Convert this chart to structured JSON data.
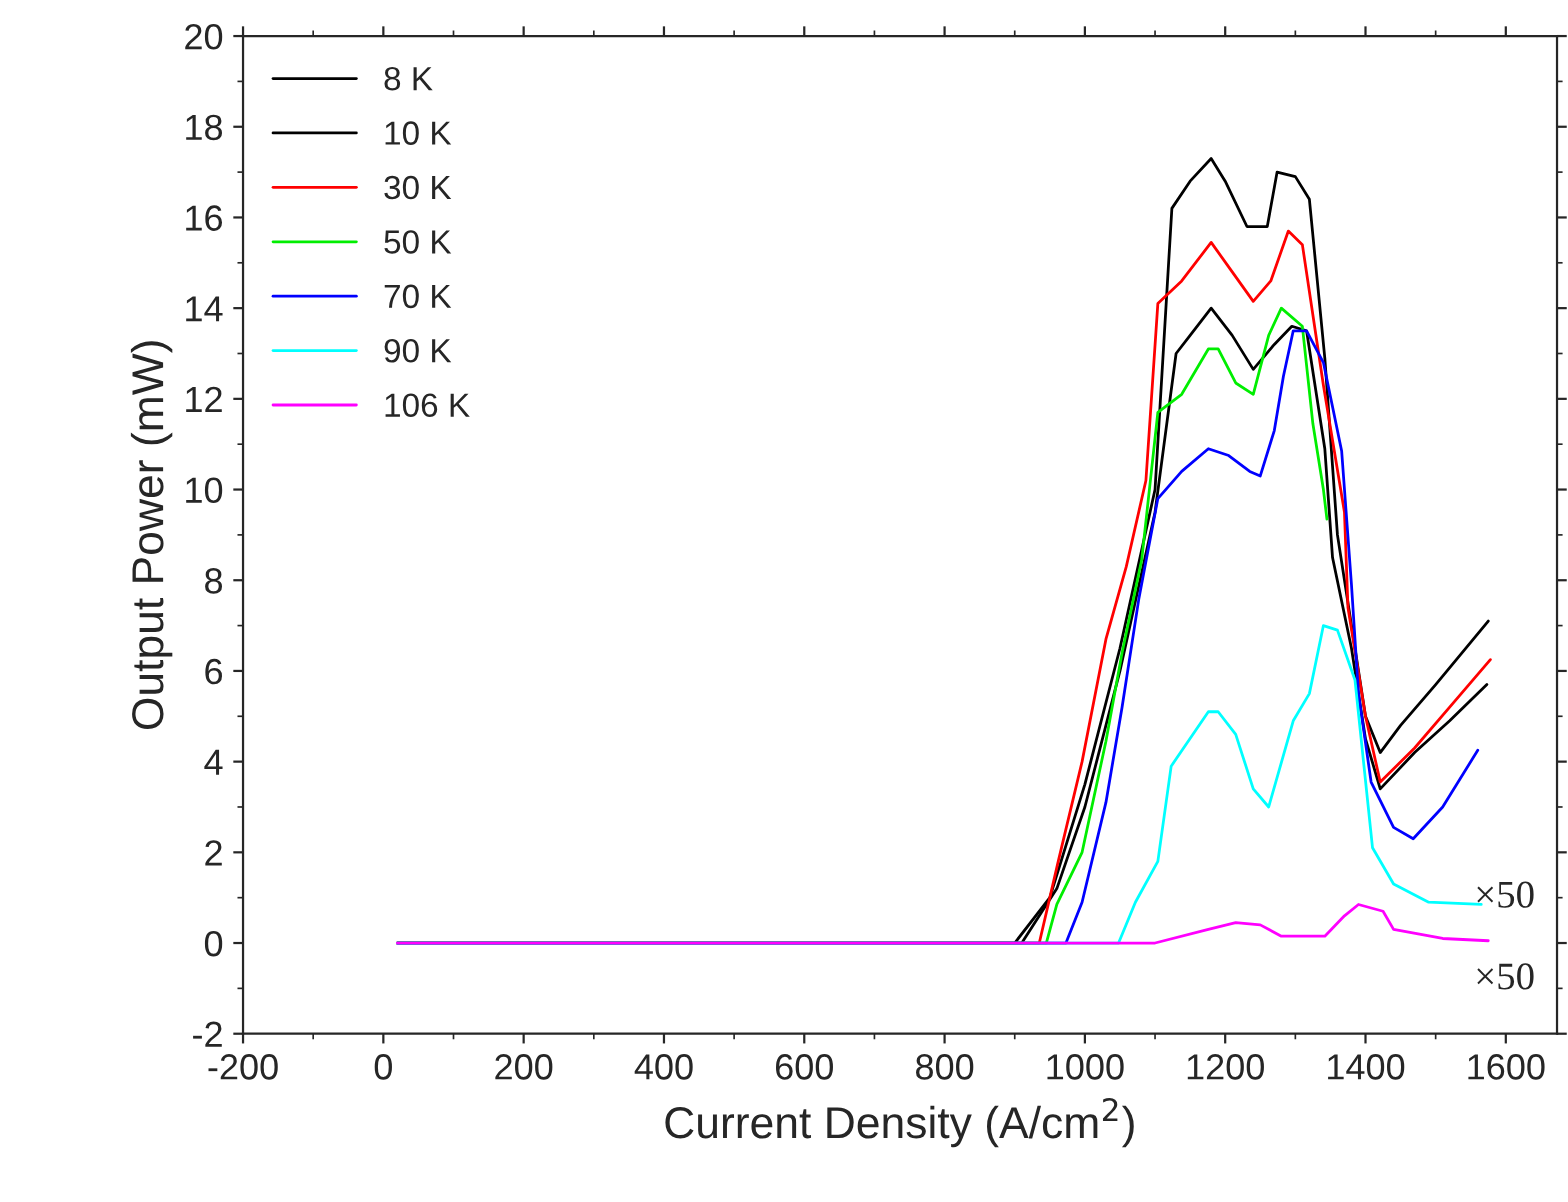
{
  "chart_data": {
    "type": "line",
    "xlabel": "Current Density (A/cm$^{2}$)",
    "ylabel": "Output Power (mW)",
    "xlim": [
      -200,
      1673
    ],
    "ylim": [
      -2,
      20
    ],
    "xticks": [
      -200,
      0,
      200,
      400,
      600,
      800,
      1000,
      1200,
      1400,
      1600
    ],
    "yticks": [
      -2,
      0,
      2,
      4,
      6,
      8,
      10,
      12,
      14,
      16,
      18,
      20
    ],
    "grid": false,
    "legend": "top left",
    "marker": "none",
    "line_style": "solid",
    "annotations": [
      "×50",
      "×50"
    ],
    "series": [
      {
        "name": "8 K",
        "color": "#000000",
        "x": [
          20,
          900,
          950,
          1000,
          1050,
          1100,
          1124,
          1150,
          1180,
          1200,
          1231,
          1260,
          1274,
          1300,
          1320,
          1342,
          1360,
          1380,
          1400,
          1421,
          1450,
          1500,
          1575
        ],
        "values": [
          0,
          0,
          1.0,
          3.5,
          6.5,
          10.0,
          16.2,
          16.8,
          17.3,
          16.8,
          15.8,
          15.8,
          17.0,
          16.9,
          16.4,
          12.9,
          9.0,
          7.0,
          5.0,
          4.2,
          4.8,
          5.7,
          7.1
        ]
      },
      {
        "name": "10 K",
        "color": "#000000",
        "x": [
          20,
          910,
          960,
          1000,
          1050,
          1100,
          1130,
          1150,
          1180,
          1210,
          1240,
          1270,
          1295,
          1316,
          1342,
          1353,
          1380,
          1400,
          1421,
          1470,
          1520,
          1573
        ],
        "values": [
          0,
          0,
          1.2,
          3.0,
          6.0,
          9.5,
          13.0,
          13.4,
          14.0,
          13.4,
          12.65,
          13.2,
          13.6,
          13.5,
          10.9,
          8.5,
          6.5,
          4.5,
          3.4,
          4.2,
          4.9,
          5.7
        ]
      },
      {
        "name": "30 K",
        "color": "#ff0000",
        "x": [
          20,
          935,
          962,
          996,
          1030,
          1059,
          1087,
          1104,
          1138,
          1180,
          1210,
          1240,
          1265,
          1290,
          1310,
          1340,
          1370,
          1375,
          1400,
          1421,
          1470,
          1520,
          1578
        ],
        "values": [
          0,
          0,
          1.8,
          4.0,
          6.7,
          8.3,
          10.2,
          14.1,
          14.6,
          15.45,
          14.8,
          14.15,
          14.6,
          15.7,
          15.4,
          12.3,
          9.5,
          7.4,
          5.0,
          3.55,
          4.3,
          5.2,
          6.25
        ]
      },
      {
        "name": "50 K",
        "color": "#00ee00",
        "x": [
          20,
          945,
          960,
          996,
          1030,
          1053,
          1081,
          1104,
          1138,
          1176,
          1190,
          1215,
          1240,
          1262,
          1280,
          1310,
          1325,
          1340,
          1345
        ],
        "values": [
          0,
          0,
          0.85,
          2.0,
          4.45,
          6.4,
          8.45,
          11.7,
          12.1,
          13.1,
          13.1,
          12.35,
          12.1,
          13.4,
          14.0,
          13.6,
          11.45,
          10.0,
          9.35
        ]
      },
      {
        "name": "70 K",
        "color": "#0000ff",
        "x": [
          20,
          973,
          996,
          1030,
          1053,
          1077,
          1104,
          1138,
          1176,
          1205,
          1235,
          1250,
          1270,
          1283,
          1297,
          1316,
          1340,
          1366,
          1380,
          1390,
          1408,
          1440,
          1468,
          1510,
          1560
        ],
        "values": [
          0,
          0,
          0.9,
          3.1,
          5.2,
          7.6,
          9.8,
          10.4,
          10.9,
          10.75,
          10.4,
          10.3,
          11.3,
          12.5,
          13.5,
          13.5,
          12.8,
          10.85,
          7.9,
          5.5,
          3.55,
          2.55,
          2.3,
          3.0,
          4.25
        ]
      },
      {
        "name": "90 K",
        "color": "#00ffff",
        "x": [
          20,
          1048,
          1072,
          1104,
          1123,
          1176,
          1190,
          1215,
          1240,
          1262,
          1297,
          1320,
          1340,
          1360,
          1385,
          1410,
          1440,
          1490,
          1565
        ],
        "values": [
          0,
          0,
          0.9,
          1.8,
          3.9,
          5.1,
          5.1,
          4.6,
          3.4,
          3.0,
          4.9,
          5.5,
          7.0,
          6.9,
          5.8,
          2.1,
          1.3,
          0.9,
          0.85
        ]
      },
      {
        "name": "106 K",
        "color": "#ff00ff",
        "x": [
          20,
          1100,
          1176,
          1215,
          1250,
          1280,
          1342,
          1370,
          1390,
          1425,
          1440,
          1510,
          1575
        ],
        "values": [
          0,
          0,
          0.3,
          0.45,
          0.4,
          0.15,
          0.15,
          0.6,
          0.85,
          0.7,
          0.3,
          0.1,
          0.05
        ]
      }
    ]
  }
}
